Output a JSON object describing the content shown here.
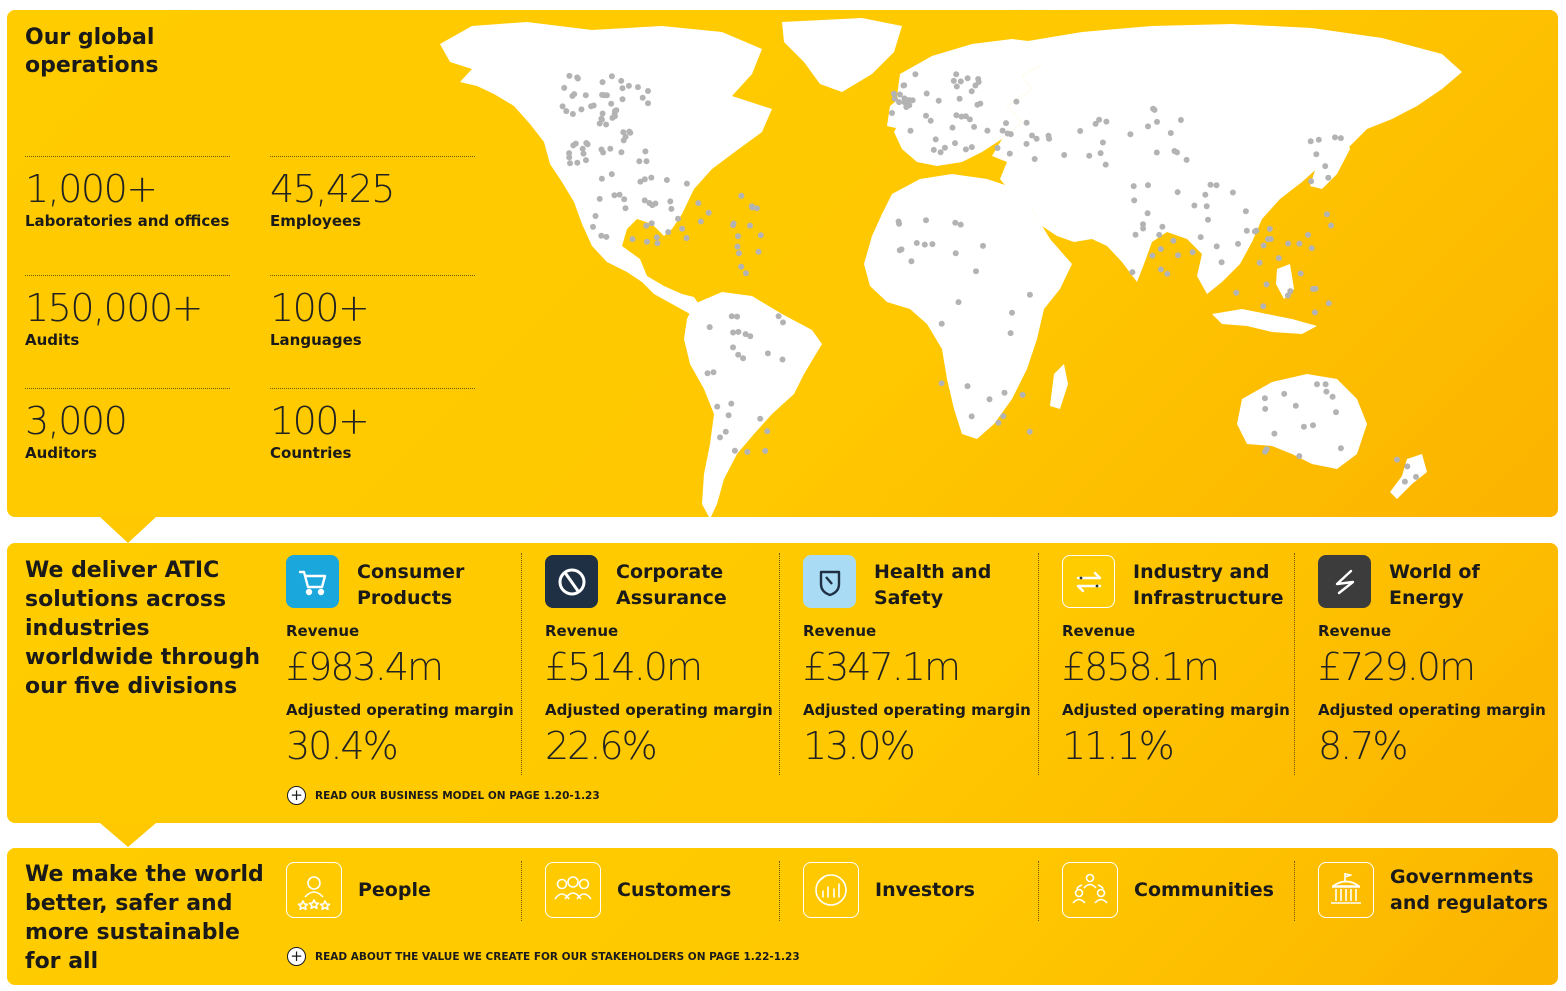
{
  "operations": {
    "title": "Our global operations",
    "stats": [
      {
        "value": "1,000+",
        "label": "Laboratories and offices"
      },
      {
        "value": "45,425",
        "label": "Employees"
      },
      {
        "value": "150,000+",
        "label": "Audits"
      },
      {
        "value": "100+",
        "label": "Languages"
      },
      {
        "value": "3,000",
        "label": "Auditors"
      },
      {
        "value": "100+",
        "label": "Countries"
      }
    ]
  },
  "divisions_section": {
    "title": "We deliver ATIC solutions across industries worldwide through our five divisions",
    "revenue_label": "Revenue",
    "margin_label": "Adjusted operating margin",
    "divisions": [
      {
        "name": "Consumer Products",
        "revenue": "£983.4m",
        "margin": "30.4%",
        "icon": "shopping-cart-icon",
        "icon_color": "#1aa7dc"
      },
      {
        "name": "Corporate Assurance",
        "revenue": "£514.0m",
        "margin": "22.6%",
        "icon": "assurance-circle-icon",
        "icon_color": "#1f3044"
      },
      {
        "name": "Health and Safety",
        "revenue": "£347.1m",
        "margin": "13.0%",
        "icon": "shield-icon",
        "icon_color": "#a9dcf4"
      },
      {
        "name": "Industry and Infrastructure",
        "revenue": "£858.1m",
        "margin": "11.1%",
        "icon": "exchange-arrows-icon",
        "icon_color": "#ffffff"
      },
      {
        "name": "World of Energy",
        "revenue": "£729.0m",
        "margin": "8.7%",
        "icon": "energy-bolt-icon",
        "icon_color": "#3c3c3c"
      }
    ],
    "read_more": "READ OUR BUSINESS MODEL ON PAGE 1.20-1.23"
  },
  "stakeholders_section": {
    "title": "We make the world better, safer and more sustainable for all",
    "stakeholders": [
      {
        "name": "People",
        "icon": "person-stars-icon"
      },
      {
        "name": "Customers",
        "icon": "customers-group-icon"
      },
      {
        "name": "Investors",
        "icon": "investors-chart-icon"
      },
      {
        "name": "Communities",
        "icon": "communities-people-icon"
      },
      {
        "name": "Governments and regulators",
        "icon": "government-building-icon"
      }
    ],
    "read_more": "READ ABOUT THE VALUE WE CREATE FOR OUR STAKEHOLDERS ON PAGE 1.22-1.23"
  },
  "colors": {
    "panel_yellow": "#ffc800",
    "map_land": "#ffffff",
    "map_dot": "#b3b3b3",
    "text": "#1a1a1a"
  }
}
